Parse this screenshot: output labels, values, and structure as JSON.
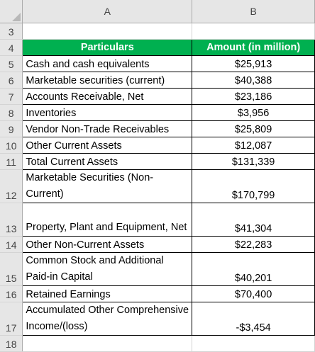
{
  "columns": [
    "A",
    "B"
  ],
  "rows": {
    "r3": "3",
    "r4": "4",
    "r5": "5",
    "r6": "6",
    "r7": "7",
    "r8": "8",
    "r9": "9",
    "r10": "10",
    "r11": "11",
    "r12": "12",
    "r13": "13",
    "r14": "14",
    "r15": "15",
    "r16": "16",
    "r17": "17",
    "r18": "18"
  },
  "table": {
    "header": {
      "particulars": "Particulars",
      "amount": "Amount (in million)"
    },
    "rows": [
      {
        "particular": "Cash and cash equivalents",
        "amount": "$25,913"
      },
      {
        "particular": "Marketable securities (current)",
        "amount": "$40,388"
      },
      {
        "particular": "Accounts Receivable, Net",
        "amount": "$23,186"
      },
      {
        "particular": "Inventories",
        "amount": "$3,956"
      },
      {
        "particular": "Vendor Non-Trade Receivables",
        "amount": "$25,809"
      },
      {
        "particular": "Other Current Assets",
        "amount": "$12,087"
      },
      {
        "particular": "Total Current Assets",
        "amount": "$131,339"
      },
      {
        "particular": "Marketable Securities (Non-Current)",
        "amount": "$170,799"
      },
      {
        "particular": "Property, Plant and Equipment, Net",
        "amount": "$41,304"
      },
      {
        "particular": "Other Non-Current Assets",
        "amount": "$22,283"
      },
      {
        "particular": "Common Stock and Additional Paid-in Capital",
        "amount": "$40,201"
      },
      {
        "particular": "Retained Earnings",
        "amount": "$70,400"
      },
      {
        "particular": "Accumulated Other Comprehensive Income/(loss)",
        "amount": "-$3,454"
      }
    ]
  },
  "colors": {
    "header_fill": "#00b050",
    "header_text": "#ffffff",
    "gridline": "#d4d4d4",
    "headings_fill": "#e6e6e6"
  }
}
